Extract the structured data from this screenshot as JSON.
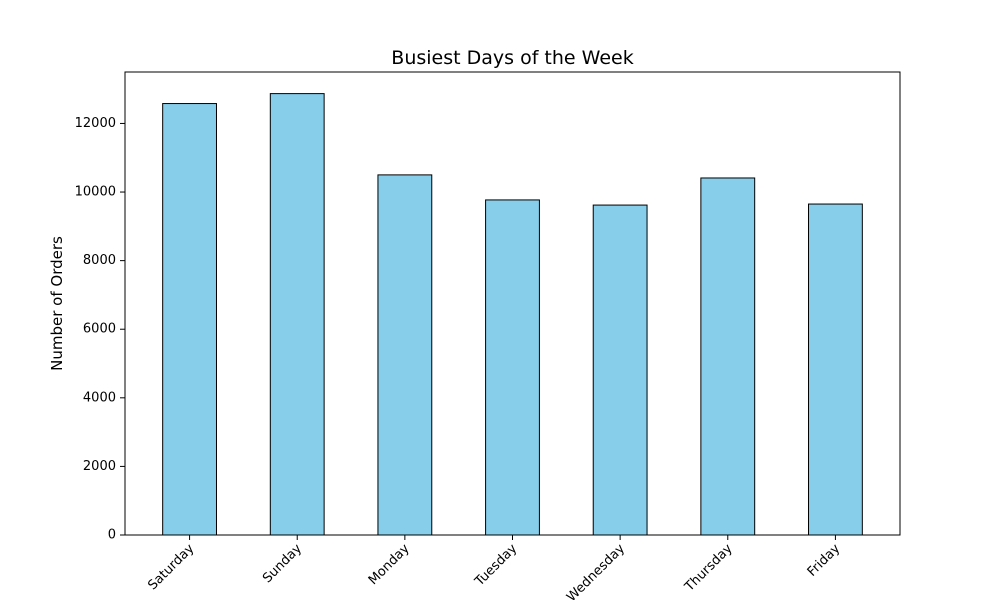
{
  "chart_data": {
    "type": "bar",
    "title": "Busiest Days of the Week",
    "xlabel": "",
    "ylabel": "Number of Orders",
    "categories": [
      "Saturday",
      "Sunday",
      "Monday",
      "Tuesday",
      "Wednesday",
      "Thursday",
      "Friday"
    ],
    "values": [
      12580,
      12870,
      10500,
      9770,
      9620,
      10410,
      9650
    ],
    "ylim": [
      0,
      13500
    ],
    "yticks": [
      0,
      2000,
      4000,
      6000,
      8000,
      10000,
      12000
    ],
    "ytick_labels": [
      "0",
      "2000",
      "4000",
      "6000",
      "8000",
      "10000",
      "12000"
    ],
    "grid": false,
    "legend": "none",
    "bar_color": "#87ceeb",
    "edge_color": "#000000"
  }
}
